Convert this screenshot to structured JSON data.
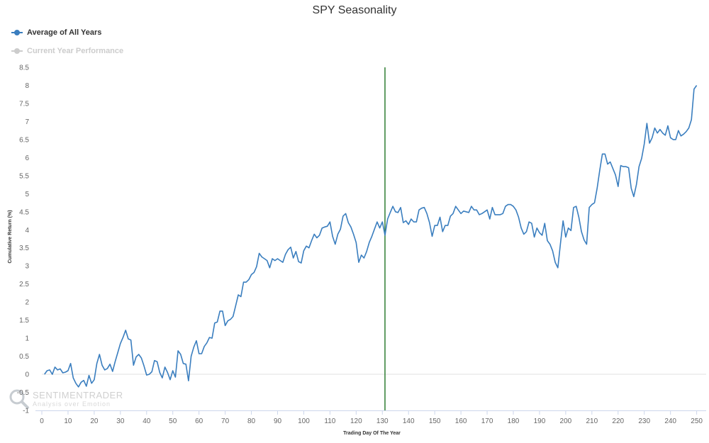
{
  "chart_data": {
    "type": "line",
    "title": "SPY Seasonality",
    "xlabel": "Trading Day Of The Year",
    "ylabel": "Cumulative Return (%)",
    "xlim": [
      0,
      252
    ],
    "ylim": [
      -1,
      8.5
    ],
    "x_ticks": [
      0,
      10,
      20,
      30,
      40,
      50,
      60,
      70,
      80,
      90,
      100,
      110,
      120,
      130,
      140,
      150,
      160,
      170,
      180,
      190,
      200,
      210,
      220,
      230,
      240,
      250
    ],
    "y_ticks": [
      "-1",
      "-0.5",
      "0",
      "0.5",
      "1",
      "1.5",
      "2",
      "2.5",
      "3",
      "3.5",
      "4",
      "4.5",
      "5",
      "5.5",
      "6",
      "6.5",
      "7",
      "7.5",
      "8",
      "8.5"
    ],
    "current_day_marker": 131,
    "legend_position": "top-left",
    "grid": false,
    "series": [
      {
        "name": "Average of All Years",
        "color": "#3a7ebf",
        "visible": true,
        "points": [
          [
            1,
            0
          ],
          [
            2,
            0.1
          ],
          [
            3,
            0.12
          ],
          [
            4,
            0
          ],
          [
            5,
            0.2
          ],
          [
            6,
            0.12
          ],
          [
            7,
            0.15
          ],
          [
            8,
            0.04
          ],
          [
            9,
            0.06
          ],
          [
            10,
            0.1
          ],
          [
            11,
            0.3
          ],
          [
            12,
            -0.1
          ],
          [
            13,
            -0.25
          ],
          [
            14,
            -0.35
          ],
          [
            15,
            -0.22
          ],
          [
            16,
            -0.17
          ],
          [
            17,
            -0.33
          ],
          [
            18,
            -0.03
          ],
          [
            19,
            -0.25
          ],
          [
            20,
            -0.15
          ],
          [
            21,
            0.3
          ],
          [
            22,
            0.55
          ],
          [
            23,
            0.25
          ],
          [
            24,
            0.12
          ],
          [
            25,
            0.16
          ],
          [
            26,
            0.28
          ],
          [
            27,
            0.08
          ],
          [
            28,
            0.35
          ],
          [
            29,
            0.6
          ],
          [
            30,
            0.85
          ],
          [
            31,
            1.02
          ],
          [
            32,
            1.22
          ],
          [
            33,
            0.98
          ],
          [
            34,
            0.95
          ],
          [
            35,
            0.25
          ],
          [
            36,
            0.48
          ],
          [
            37,
            0.55
          ],
          [
            38,
            0.45
          ],
          [
            39,
            0.23
          ],
          [
            40,
            -0.02
          ],
          [
            41,
            0
          ],
          [
            42,
            0.07
          ],
          [
            43,
            0.38
          ],
          [
            44,
            0.35
          ],
          [
            45,
            0.05
          ],
          [
            46,
            -0.1
          ],
          [
            47,
            0.2
          ],
          [
            48,
            0.05
          ],
          [
            49,
            -0.15
          ],
          [
            50,
            0.1
          ],
          [
            51,
            -0.08
          ],
          [
            52,
            0.65
          ],
          [
            53,
            0.55
          ],
          [
            54,
            0.3
          ],
          [
            55,
            0.28
          ],
          [
            56,
            -0.18
          ],
          [
            57,
            0.5
          ],
          [
            58,
            0.75
          ],
          [
            59,
            0.93
          ],
          [
            60,
            0.57
          ],
          [
            61,
            0.57
          ],
          [
            62,
            0.77
          ],
          [
            63,
            0.87
          ],
          [
            64,
            1.02
          ],
          [
            65,
            1
          ],
          [
            66,
            1.42
          ],
          [
            67,
            1.45
          ],
          [
            68,
            1.75
          ],
          [
            69,
            1.75
          ],
          [
            70,
            1.35
          ],
          [
            71,
            1.48
          ],
          [
            72,
            1.52
          ],
          [
            73,
            1.6
          ],
          [
            74,
            1.9
          ],
          [
            75,
            2.2
          ],
          [
            76,
            2.15
          ],
          [
            77,
            2.55
          ],
          [
            78,
            2.55
          ],
          [
            79,
            2.62
          ],
          [
            80,
            2.76
          ],
          [
            81,
            2.82
          ],
          [
            82,
            2.98
          ],
          [
            83,
            3.35
          ],
          [
            84,
            3.25
          ],
          [
            85,
            3.2
          ],
          [
            86,
            3.15
          ],
          [
            87,
            2.95
          ],
          [
            88,
            3.2
          ],
          [
            89,
            3.15
          ],
          [
            90,
            3.2
          ],
          [
            91,
            3.15
          ],
          [
            92,
            3.1
          ],
          [
            93,
            3.32
          ],
          [
            94,
            3.45
          ],
          [
            95,
            3.52
          ],
          [
            96,
            3.22
          ],
          [
            97,
            3.4
          ],
          [
            98,
            3.12
          ],
          [
            99,
            3.08
          ],
          [
            100,
            3.42
          ],
          [
            101,
            3.55
          ],
          [
            102,
            3.5
          ],
          [
            103,
            3.7
          ],
          [
            104,
            3.88
          ],
          [
            105,
            3.78
          ],
          [
            106,
            3.85
          ],
          [
            107,
            4.05
          ],
          [
            108,
            4.08
          ],
          [
            109,
            4.1
          ],
          [
            110,
            4.22
          ],
          [
            111,
            3.82
          ],
          [
            112,
            3.6
          ],
          [
            113,
            3.88
          ],
          [
            114,
            4.02
          ],
          [
            115,
            4.38
          ],
          [
            116,
            4.45
          ],
          [
            117,
            4.2
          ],
          [
            118,
            4.08
          ],
          [
            119,
            3.88
          ],
          [
            120,
            3.65
          ],
          [
            121,
            3.1
          ],
          [
            122,
            3.3
          ],
          [
            123,
            3.22
          ],
          [
            124,
            3.4
          ],
          [
            125,
            3.65
          ],
          [
            126,
            3.82
          ],
          [
            127,
            4.02
          ],
          [
            128,
            4.22
          ],
          [
            129,
            4.05
          ],
          [
            130,
            4.22
          ],
          [
            131,
            3.85
          ],
          [
            132,
            4.3
          ],
          [
            133,
            4.48
          ],
          [
            134,
            4.65
          ],
          [
            135,
            4.5
          ],
          [
            136,
            4.48
          ],
          [
            137,
            4.62
          ],
          [
            138,
            4.2
          ],
          [
            139,
            4.25
          ],
          [
            140,
            4.15
          ],
          [
            141,
            4.3
          ],
          [
            142,
            4.22
          ],
          [
            143,
            4.22
          ],
          [
            144,
            4.55
          ],
          [
            145,
            4.6
          ],
          [
            146,
            4.62
          ],
          [
            147,
            4.45
          ],
          [
            148,
            4.2
          ],
          [
            149,
            3.82
          ],
          [
            150,
            4.12
          ],
          [
            151,
            4.12
          ],
          [
            152,
            4.35
          ],
          [
            153,
            3.95
          ],
          [
            154,
            4.12
          ],
          [
            155,
            4.12
          ],
          [
            156,
            4.38
          ],
          [
            157,
            4.45
          ],
          [
            158,
            4.65
          ],
          [
            159,
            4.55
          ],
          [
            160,
            4.45
          ],
          [
            161,
            4.52
          ],
          [
            162,
            4.5
          ],
          [
            163,
            4.48
          ],
          [
            164,
            4.65
          ],
          [
            165,
            4.55
          ],
          [
            166,
            4.55
          ],
          [
            167,
            4.42
          ],
          [
            168,
            4.45
          ],
          [
            169,
            4.5
          ],
          [
            170,
            4.55
          ],
          [
            171,
            4.3
          ],
          [
            172,
            4.62
          ],
          [
            173,
            4.42
          ],
          [
            174,
            4.42
          ],
          [
            175,
            4.42
          ],
          [
            176,
            4.45
          ],
          [
            177,
            4.65
          ],
          [
            178,
            4.7
          ],
          [
            179,
            4.7
          ],
          [
            180,
            4.65
          ],
          [
            181,
            4.55
          ],
          [
            182,
            4.35
          ],
          [
            183,
            4.05
          ],
          [
            184,
            3.88
          ],
          [
            185,
            3.95
          ],
          [
            186,
            4.22
          ],
          [
            187,
            4.18
          ],
          [
            188,
            3.8
          ],
          [
            189,
            4.05
          ],
          [
            190,
            3.92
          ],
          [
            191,
            3.85
          ],
          [
            192,
            4.18
          ],
          [
            193,
            3.7
          ],
          [
            194,
            3.6
          ],
          [
            195,
            3.42
          ],
          [
            196,
            3.1
          ],
          [
            197,
            2.95
          ],
          [
            198,
            3.62
          ],
          [
            199,
            4.25
          ],
          [
            200,
            3.8
          ],
          [
            201,
            4.05
          ],
          [
            202,
            3.98
          ],
          [
            203,
            4.62
          ],
          [
            204,
            4.65
          ],
          [
            205,
            4.35
          ],
          [
            206,
            3.95
          ],
          [
            207,
            3.72
          ],
          [
            208,
            3.6
          ],
          [
            209,
            4.62
          ],
          [
            210,
            4.7
          ],
          [
            211,
            4.75
          ],
          [
            212,
            5.15
          ],
          [
            213,
            5.65
          ],
          [
            214,
            6.1
          ],
          [
            215,
            6.1
          ],
          [
            216,
            5.82
          ],
          [
            217,
            5.88
          ],
          [
            218,
            5.7
          ],
          [
            219,
            5.52
          ],
          [
            220,
            5.2
          ],
          [
            221,
            5.78
          ],
          [
            222,
            5.75
          ],
          [
            223,
            5.75
          ],
          [
            224,
            5.72
          ],
          [
            225,
            5.15
          ],
          [
            226,
            4.92
          ],
          [
            227,
            5.25
          ],
          [
            228,
            5.75
          ],
          [
            229,
            5.98
          ],
          [
            230,
            6.38
          ],
          [
            231,
            6.95
          ],
          [
            232,
            6.4
          ],
          [
            233,
            6.55
          ],
          [
            234,
            6.82
          ],
          [
            235,
            6.68
          ],
          [
            236,
            6.78
          ],
          [
            237,
            6.68
          ],
          [
            238,
            6.62
          ],
          [
            239,
            6.88
          ],
          [
            240,
            6.55
          ],
          [
            241,
            6.5
          ],
          [
            242,
            6.5
          ],
          [
            243,
            6.75
          ],
          [
            244,
            6.6
          ],
          [
            245,
            6.65
          ],
          [
            246,
            6.72
          ],
          [
            247,
            6.82
          ],
          [
            248,
            7.05
          ],
          [
            249,
            7.9
          ],
          [
            250,
            8.0
          ]
        ]
      },
      {
        "name": "Current Year Performance",
        "color": "#cccccc",
        "visible": false,
        "points": []
      }
    ]
  },
  "watermark": {
    "line1": "SENTIMENTRADER",
    "line2": "Analysis over Emotion"
  }
}
